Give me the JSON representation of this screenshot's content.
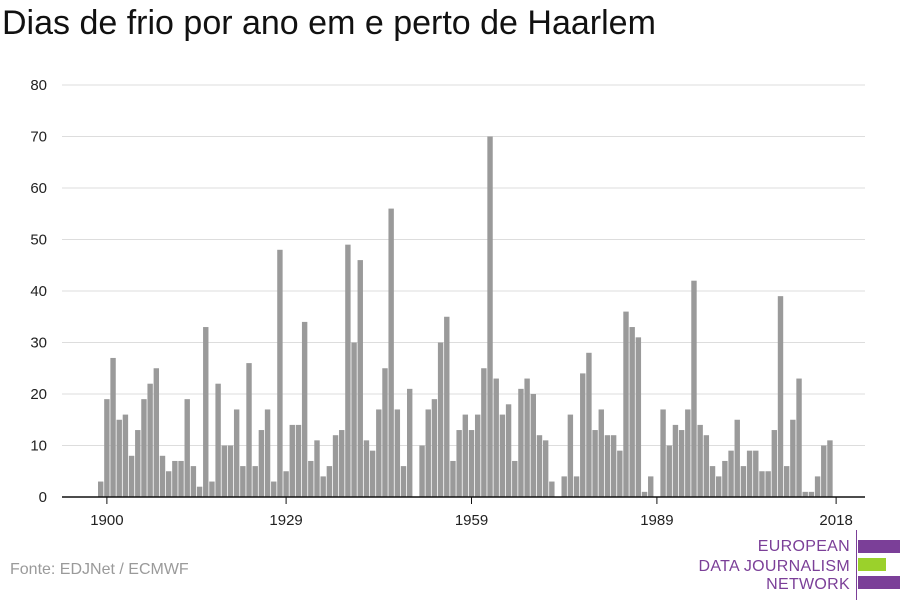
{
  "title": "Dias de frio por ano em e perto de Haarlem",
  "source": "Fonte: EDJNet / ECMWF",
  "logo": {
    "lines": [
      "EUROPEAN",
      "DATA JOURNALISM",
      "NETWORK"
    ],
    "colors": {
      "purple": "#7b3f98",
      "green": "#9bd12b"
    }
  },
  "colors": {
    "bar": "#9a9a9a",
    "grid": "#dddddd",
    "axis": "#111111"
  },
  "chart_data": {
    "type": "bar",
    "title": "Dias de frio por ano em e perto de Haarlem",
    "xlabel": "",
    "ylabel": "",
    "ylim": [
      0,
      80
    ],
    "yticks": [
      0,
      10,
      20,
      30,
      40,
      50,
      60,
      70,
      80
    ],
    "xticks": [
      1900,
      1929,
      1959,
      1989,
      2018
    ],
    "grid": true,
    "x": [
      1899,
      1900,
      1901,
      1902,
      1903,
      1904,
      1905,
      1906,
      1907,
      1908,
      1909,
      1910,
      1911,
      1912,
      1913,
      1914,
      1915,
      1916,
      1917,
      1918,
      1919,
      1920,
      1921,
      1922,
      1923,
      1924,
      1925,
      1926,
      1927,
      1928,
      1929,
      1930,
      1931,
      1932,
      1933,
      1934,
      1935,
      1936,
      1937,
      1938,
      1939,
      1940,
      1941,
      1942,
      1943,
      1944,
      1945,
      1946,
      1947,
      1948,
      1949,
      1950,
      1951,
      1952,
      1953,
      1954,
      1955,
      1956,
      1957,
      1958,
      1959,
      1960,
      1961,
      1962,
      1963,
      1964,
      1965,
      1966,
      1967,
      1968,
      1969,
      1970,
      1971,
      1972,
      1973,
      1974,
      1975,
      1976,
      1977,
      1978,
      1979,
      1980,
      1981,
      1982,
      1983,
      1984,
      1985,
      1986,
      1987,
      1988,
      1989,
      1990,
      1991,
      1992,
      1993,
      1994,
      1995,
      1996,
      1997,
      1998,
      1999,
      2000,
      2001,
      2002,
      2003,
      2004,
      2005,
      2006,
      2007,
      2008,
      2009,
      2010,
      2011,
      2012,
      2013,
      2014,
      2015,
      2016,
      2017,
      2018
    ],
    "values": [
      3,
      19,
      27,
      15,
      16,
      8,
      13,
      19,
      22,
      25,
      8,
      5,
      7,
      7,
      19,
      6,
      2,
      33,
      3,
      22,
      10,
      10,
      17,
      6,
      26,
      6,
      13,
      17,
      3,
      48,
      5,
      14,
      14,
      34,
      7,
      11,
      4,
      6,
      12,
      13,
      49,
      30,
      46,
      11,
      9,
      17,
      25,
      56,
      17,
      6,
      21,
      0,
      10,
      17,
      19,
      30,
      35,
      7,
      13,
      16,
      13,
      16,
      25,
      70,
      23,
      16,
      18,
      7,
      21,
      23,
      20,
      12,
      11,
      3,
      0,
      4,
      16,
      4,
      24,
      28,
      13,
      17,
      12,
      12,
      9,
      36,
      33,
      31,
      1,
      4,
      0,
      17,
      10,
      14,
      13,
      17,
      42,
      14,
      12,
      6,
      4,
      7,
      9,
      15,
      6,
      9,
      9,
      5,
      5,
      13,
      39,
      6,
      15,
      23,
      1,
      1,
      4,
      10,
      11,
      0
    ]
  }
}
